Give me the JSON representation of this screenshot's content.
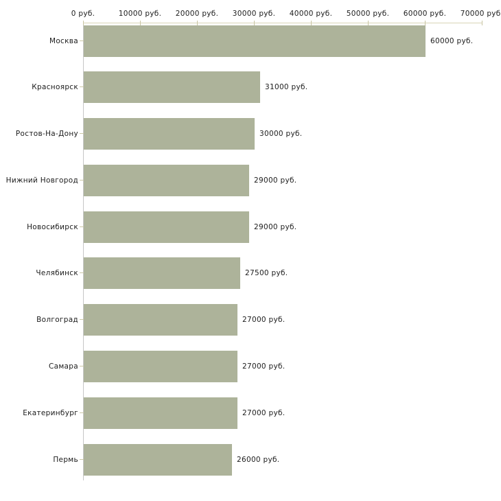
{
  "chart_data": {
    "type": "bar",
    "orientation": "horizontal",
    "categories": [
      "Москва",
      "Красноярск",
      "Ростов-На-Дону",
      "Нижний Новгород",
      "Новосибирск",
      "Челябинск",
      "Волгоград",
      "Самара",
      "Екатеринбург",
      "Пермь"
    ],
    "values": [
      60000,
      31000,
      30000,
      29000,
      29000,
      27500,
      27000,
      27000,
      27000,
      26000
    ],
    "bar_labels": [
      "60000 руб.",
      "31000 руб.",
      "30000 руб.",
      "29000 руб.",
      "29000 руб.",
      "27500 руб.",
      "27000 руб.",
      "27000 руб.",
      "27000 руб.",
      "26000 руб."
    ],
    "unit": "руб.",
    "x_axis": {
      "position": "top",
      "range": [
        0,
        70000
      ],
      "ticks": [
        0,
        10000,
        20000,
        30000,
        40000,
        50000,
        60000,
        70000
      ],
      "tick_labels": [
        "0 руб.",
        "10000 руб.",
        "20000 руб.",
        "30000 руб.",
        "40000 руб.",
        "50000 руб.",
        "60000 руб.",
        "70000 руб."
      ]
    },
    "grid": false,
    "legend": false,
    "colors": {
      "bar": "#adb39a",
      "x_axis_line": "#d8d4b6",
      "x_tick": "#c9c5a3",
      "y_axis_line": "#c6c6c6",
      "y_tick": "#ccc8a6",
      "text": "#1b1b1b",
      "background": "#ffffff"
    }
  }
}
